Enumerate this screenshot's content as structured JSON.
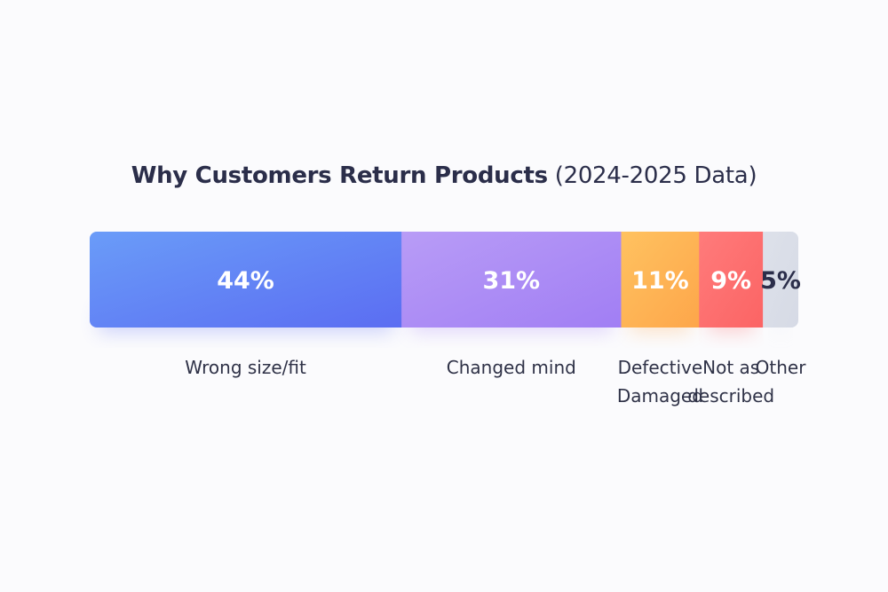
{
  "chart_data": {
    "type": "bar",
    "title_main": "Why Customers Return Products",
    "title_suffix": "(2024-2025 Data)",
    "categories": [
      [
        "Wrong size/fit"
      ],
      [
        "Changed mind"
      ],
      [
        "Defective",
        "Damaged"
      ],
      [
        "Not as",
        "described"
      ],
      [
        "Other"
      ]
    ],
    "values": [
      44,
      31,
      11,
      9,
      5
    ],
    "value_labels": [
      "44%",
      "31%",
      "11%",
      "9%",
      "5%"
    ],
    "colors": [
      [
        "#6a9cf8",
        "#5b6df2"
      ],
      [
        "#b89cf6",
        "#a17ef4"
      ],
      [
        "#ffc260",
        "#fda64a"
      ],
      [
        "#ff7b7b",
        "#fb6464"
      ],
      [
        "#dde1ea",
        "#d6dae5"
      ]
    ],
    "label_colors": [
      "#ffffff",
      "#ffffff",
      "#ffffff",
      "#ffffff",
      "#2b2e4a"
    ],
    "orientation": "stacked-horizontal-100",
    "legend": "none",
    "grid": false
  }
}
